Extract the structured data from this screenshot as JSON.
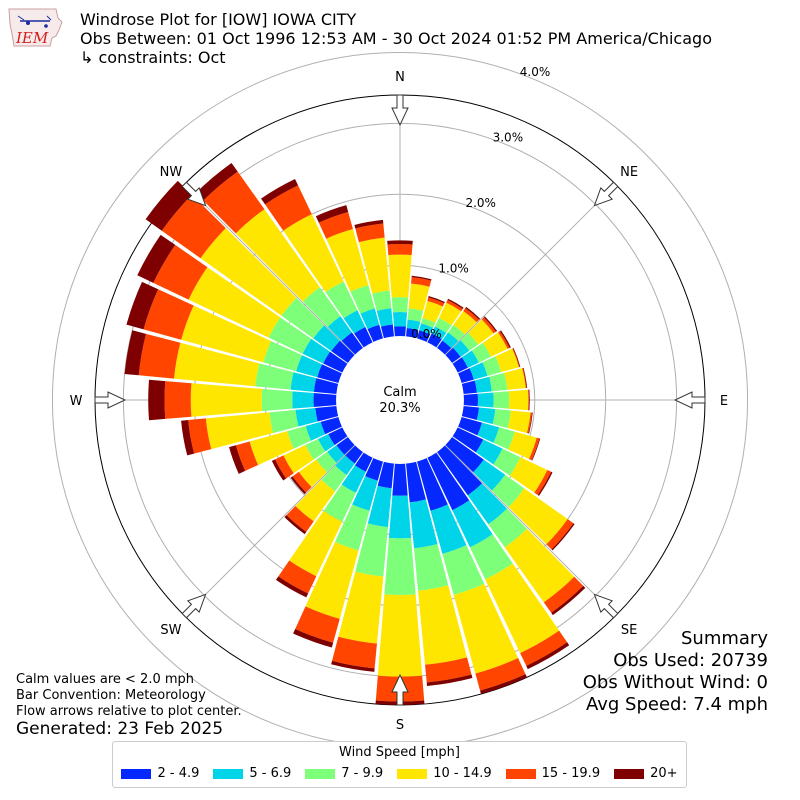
{
  "header": {
    "logo_text": "IEM",
    "title_line1": "Windrose Plot for [IOW] IOWA CITY",
    "title_line2": "Obs Between: 01 Oct 1996 12:53 AM - 30 Oct 2024 01:52 PM America/Chicago",
    "title_line3": "↳ constraints: Oct"
  },
  "summary": {
    "heading": "Summary",
    "obs_used": "Obs Used: 20739",
    "obs_without_wind": "Obs Without Wind: 0",
    "avg_speed": "Avg Speed: 7.4 mph"
  },
  "notes": {
    "line1": "Calm values are < 2.0 mph",
    "line2": "Bar Convention: Meteorology",
    "line3": "Flow arrows relative to plot center.",
    "generated": "Generated: 23 Feb 2025"
  },
  "chart_data": {
    "type": "windrose",
    "calm_label": "Calm",
    "calm_value": "20.3%",
    "radial_ticks": [
      "0.0%",
      "1.0%",
      "2.0%",
      "3.0%",
      "4.0%"
    ],
    "radial_tick_values": [
      0,
      1,
      2,
      3,
      4
    ],
    "radial_max": 4.3,
    "calm_radius_value": 0.9,
    "compass_labels": [
      "N",
      "NE",
      "E",
      "SE",
      "S",
      "SW",
      "W",
      "NW"
    ],
    "legend_title": "Wind Speed [mph]",
    "bins": [
      {
        "label": "2 - 4.9",
        "color": "#0528ff"
      },
      {
        "label": "5 - 6.9",
        "color": "#00d4e8"
      },
      {
        "label": "7 - 9.9",
        "color": "#7dff7a"
      },
      {
        "label": "10 - 14.9",
        "color": "#ffe600"
      },
      {
        "label": "15 - 19.9",
        "color": "#ff4500"
      },
      {
        "label": "20+",
        "color": "#7f0000"
      }
    ],
    "directions_deg": [
      0,
      10,
      20,
      30,
      40,
      50,
      60,
      70,
      80,
      90,
      100,
      110,
      120,
      130,
      140,
      150,
      160,
      170,
      180,
      190,
      200,
      210,
      220,
      230,
      240,
      250,
      260,
      270,
      280,
      290,
      300,
      310,
      320,
      330,
      340,
      350
    ],
    "cumulative": [
      [
        0.14,
        0.34,
        0.55,
        1.15,
        1.3,
        1.35
      ],
      [
        0.12,
        0.24,
        0.4,
        0.75,
        0.84,
        0.86
      ],
      [
        0.12,
        0.22,
        0.3,
        0.55,
        0.6,
        0.62
      ],
      [
        0.14,
        0.25,
        0.38,
        0.62,
        0.66,
        0.68
      ],
      [
        0.13,
        0.27,
        0.4,
        0.64,
        0.69,
        0.71
      ],
      [
        0.15,
        0.3,
        0.45,
        0.72,
        0.76,
        0.78
      ],
      [
        0.16,
        0.33,
        0.52,
        0.78,
        0.81,
        0.83
      ],
      [
        0.18,
        0.38,
        0.58,
        0.84,
        0.85,
        0.86
      ],
      [
        0.19,
        0.4,
        0.62,
        0.88,
        0.89,
        0.9
      ],
      [
        0.2,
        0.42,
        0.64,
        0.91,
        0.92,
        0.93
      ],
      [
        0.22,
        0.45,
        0.67,
        0.95,
        0.97,
        0.98
      ],
      [
        0.3,
        0.55,
        0.78,
        1.1,
        1.14,
        1.15
      ],
      [
        0.4,
        0.7,
        0.98,
        1.4,
        1.46,
        1.48
      ],
      [
        0.55,
        0.92,
        1.25,
        2.0,
        2.1,
        2.12
      ],
      [
        0.75,
        1.25,
        1.65,
        2.6,
        2.78,
        2.82
      ],
      [
        0.82,
        1.4,
        1.9,
        3.05,
        3.25,
        3.3
      ],
      [
        0.72,
        1.35,
        1.95,
        3.1,
        3.35,
        3.4
      ],
      [
        0.55,
        1.2,
        1.8,
        2.85,
        3.1,
        3.15
      ],
      [
        0.45,
        1.05,
        1.85,
        3.0,
        3.35,
        3.4
      ],
      [
        0.35,
        0.9,
        1.6,
        2.55,
        2.9,
        2.95
      ],
      [
        0.28,
        0.72,
        1.3,
        2.3,
        2.65,
        2.72
      ],
      [
        0.22,
        0.55,
        1.0,
        1.85,
        2.12,
        2.18
      ],
      [
        0.2,
        0.4,
        0.68,
        1.2,
        1.38,
        1.42
      ],
      [
        0.2,
        0.36,
        0.55,
        0.85,
        0.96,
        0.99
      ],
      [
        0.22,
        0.38,
        0.58,
        0.92,
        1.05,
        1.1
      ],
      [
        0.26,
        0.48,
        0.75,
        1.3,
        1.5,
        1.6
      ],
      [
        0.3,
        0.58,
        0.95,
        1.85,
        2.1,
        2.2
      ],
      [
        0.32,
        0.62,
        1.05,
        2.05,
        2.42,
        2.65
      ],
      [
        0.32,
        0.65,
        1.15,
        2.3,
        2.8,
        3.0
      ],
      [
        0.31,
        0.62,
        1.1,
        2.3,
        2.85,
        3.1
      ],
      [
        0.3,
        0.62,
        1.15,
        2.4,
        2.95,
        3.2
      ],
      [
        0.29,
        0.6,
        1.15,
        2.55,
        3.22,
        3.5
      ],
      [
        0.27,
        0.55,
        1.05,
        2.4,
        3.05,
        3.2
      ],
      [
        0.24,
        0.5,
        0.95,
        2.0,
        2.45,
        2.55
      ],
      [
        0.2,
        0.44,
        0.78,
        1.6,
        1.85,
        1.95
      ],
      [
        0.17,
        0.4,
        0.65,
        1.4,
        1.6,
        1.65
      ]
    ]
  }
}
